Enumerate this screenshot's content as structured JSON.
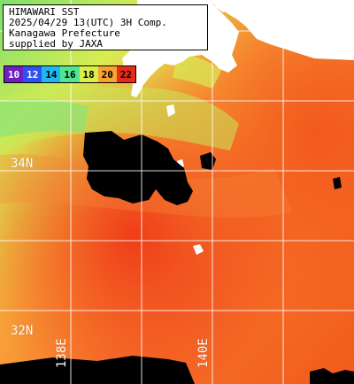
{
  "header": {
    "line1": "HIMAWARI SST",
    "line2": "2025/04/29 13(UTC) 3H Comp.",
    "line3": "Kanagawa Prefecture",
    "line4": "supplied by JAXA"
  },
  "legend": [
    {
      "label": "10",
      "bg": "#6e1fbf",
      "fg": "#ffffff"
    },
    {
      "label": "12",
      "bg": "#2f52ee",
      "fg": "#ffffff"
    },
    {
      "label": "14",
      "bg": "#1fb7f2",
      "fg": "#000000"
    },
    {
      "label": "16",
      "bg": "#52e58e",
      "fg": "#000000"
    },
    {
      "label": "18",
      "bg": "#dbef4b",
      "fg": "#000000"
    },
    {
      "label": "20",
      "bg": "#f7a331",
      "fg": "#000000"
    },
    {
      "label": "22",
      "bg": "#e82b18",
      "fg": "#000000"
    }
  ],
  "grid": {
    "lat_labels": [
      "34N",
      "32N"
    ],
    "lon_labels": [
      "138E",
      "140E"
    ]
  },
  "colors": {
    "land": "#ffffff",
    "cloud": "#000000",
    "warm": "#f7561a",
    "mid": "#f7a331",
    "cool": "#9be882",
    "gridline": "#ffffff"
  }
}
